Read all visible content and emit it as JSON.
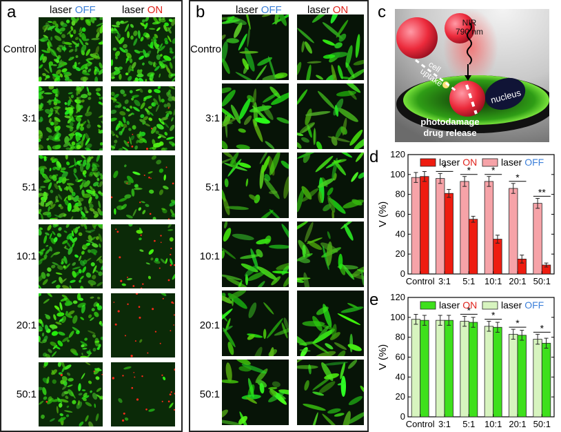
{
  "panel_a": {
    "label": "a",
    "col_off_prefix": "laser ",
    "col_off_state": "OFF",
    "col_on_prefix": "laser ",
    "col_on_state": "ON",
    "rows": [
      "Control",
      "3:1",
      "5:1",
      "10:1",
      "20:1",
      "50:1"
    ]
  },
  "panel_b": {
    "label": "b",
    "col_off_prefix": "laser ",
    "col_off_state": "OFF",
    "col_on_prefix": "laser ",
    "col_on_state": "ON",
    "rows": [
      "Control",
      "3:1",
      "5:1",
      "10:1",
      "20:1",
      "50:1"
    ]
  },
  "panel_c": {
    "label": "c",
    "nir_line1": "NIR",
    "nir_line2": "790 nm",
    "cell_uptake_1": "cell",
    "cell_uptake_2": "uptake",
    "nucleus": "nucleus",
    "photodamage": "photodamage",
    "drug_release": "drug release"
  },
  "chart_data": [
    {
      "panel": "d",
      "type": "bar",
      "categories": [
        "Control",
        "3:1",
        "5:1",
        "10:1",
        "20:1",
        "50:1"
      ],
      "ylabel": "V (%)",
      "ylim": [
        0,
        120
      ],
      "yticks": [
        0,
        20,
        40,
        60,
        80,
        100,
        120
      ],
      "legend_position": "top",
      "series": [
        {
          "name": "laser ON",
          "values": [
            98,
            81,
            55,
            35,
            15,
            9
          ],
          "errors": [
            5,
            4,
            3,
            4,
            4,
            2
          ],
          "color": "#ee1c10"
        },
        {
          "name": "laser OFF",
          "values": [
            97,
            96,
            93,
            93,
            86,
            71
          ],
          "errors": [
            5,
            5,
            5,
            5,
            5,
            5
          ],
          "color": "#f6a3a8"
        }
      ],
      "significance": [
        "",
        "*",
        "*",
        "*",
        "*",
        "**"
      ],
      "legend": [
        {
          "prefix": "laser ",
          "state": "ON",
          "state_color": "#e0221b"
        },
        {
          "prefix": "laser ",
          "state": "OFF",
          "state_color": "#3b7fd9"
        }
      ]
    },
    {
      "panel": "e",
      "type": "bar",
      "categories": [
        "Control",
        "3:1",
        "5:1",
        "10:1",
        "20:1",
        "50:1"
      ],
      "ylabel": "V (%)",
      "ylim": [
        0,
        120
      ],
      "yticks": [
        0,
        20,
        40,
        60,
        80,
        100,
        120
      ],
      "legend_position": "top",
      "series": [
        {
          "name": "laser ON",
          "values": [
            97,
            97,
            95,
            90,
            82,
            74
          ],
          "errors": [
            5,
            5,
            5,
            5,
            5,
            5
          ],
          "color": "#3ee01c"
        },
        {
          "name": "laser OFF",
          "values": [
            98,
            97,
            96,
            91,
            83,
            78
          ],
          "errors": [
            5,
            5,
            5,
            5,
            5,
            5
          ],
          "color": "#d7f4bf"
        }
      ],
      "significance": [
        "",
        "",
        "*",
        "*",
        "*",
        "*"
      ],
      "legend": [
        {
          "prefix": "laser ",
          "state": "ON",
          "state_color": "#e0221b"
        },
        {
          "prefix": "laser ",
          "state": "OFF",
          "state_color": "#3b7fd9"
        }
      ]
    }
  ]
}
